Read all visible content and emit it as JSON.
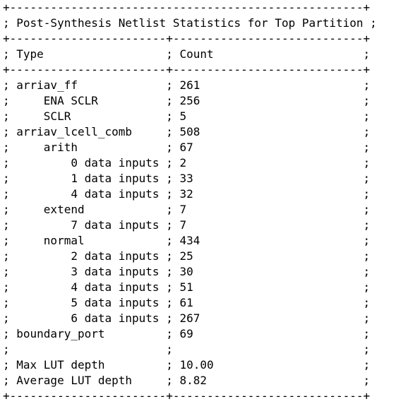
{
  "title": "Post-Synthesis Netlist Statistics for Top Partition",
  "column_headers": [
    "Type",
    "Count"
  ],
  "rows": [
    {
      "indent": 0,
      "type": "arriav_ff",
      "count": "261"
    },
    {
      "indent": 1,
      "type": "ENA SCLR",
      "count": "256"
    },
    {
      "indent": 1,
      "type": "SCLR",
      "count": "5"
    },
    {
      "indent": 0,
      "type": "arriav_lcell_comb",
      "count": "508"
    },
    {
      "indent": 1,
      "type": "arith",
      "count": "67"
    },
    {
      "indent": 2,
      "type": "0 data inputs",
      "count": "2"
    },
    {
      "indent": 2,
      "type": "1 data inputs",
      "count": "33"
    },
    {
      "indent": 2,
      "type": "4 data inputs",
      "count": "32"
    },
    {
      "indent": 1,
      "type": "extend",
      "count": "7"
    },
    {
      "indent": 2,
      "type": "7 data inputs",
      "count": "7"
    },
    {
      "indent": 1,
      "type": "normal",
      "count": "434"
    },
    {
      "indent": 2,
      "type": "2 data inputs",
      "count": "25"
    },
    {
      "indent": 2,
      "type": "3 data inputs",
      "count": "30"
    },
    {
      "indent": 2,
      "type": "4 data inputs",
      "count": "51"
    },
    {
      "indent": 2,
      "type": "5 data inputs",
      "count": "61"
    },
    {
      "indent": 2,
      "type": "6 data inputs",
      "count": "267"
    },
    {
      "indent": 0,
      "type": "boundary_port",
      "count": "69"
    },
    {
      "indent": 0,
      "type": "",
      "count": ""
    },
    {
      "indent": 0,
      "type": "Max LUT depth",
      "count": "10.00"
    },
    {
      "indent": 0,
      "type": "Average LUT depth",
      "count": "8.82"
    }
  ]
}
